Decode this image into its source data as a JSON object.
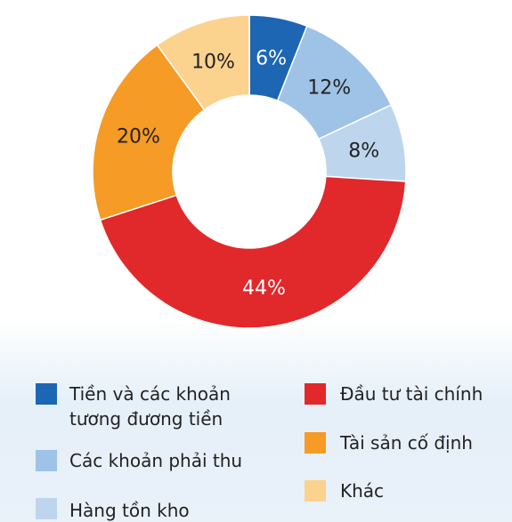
{
  "chart_data": {
    "type": "donut",
    "categories": [
      "Tiền và các khoản tương đương tiền",
      "Các khoản phải thu",
      "Hàng tồn kho",
      "Đầu tư tài chính",
      "Tài sản cố định",
      "Khác"
    ],
    "values": [
      6,
      12,
      8,
      44,
      20,
      10
    ],
    "value_labels": [
      "6%",
      "12%",
      "8%",
      "44%",
      "20%",
      "10%"
    ],
    "colors": [
      "#1c66b4",
      "#9ec3e6",
      "#bdd6ee",
      "#e1282b",
      "#f59b26",
      "#fcd28f"
    ]
  }
}
